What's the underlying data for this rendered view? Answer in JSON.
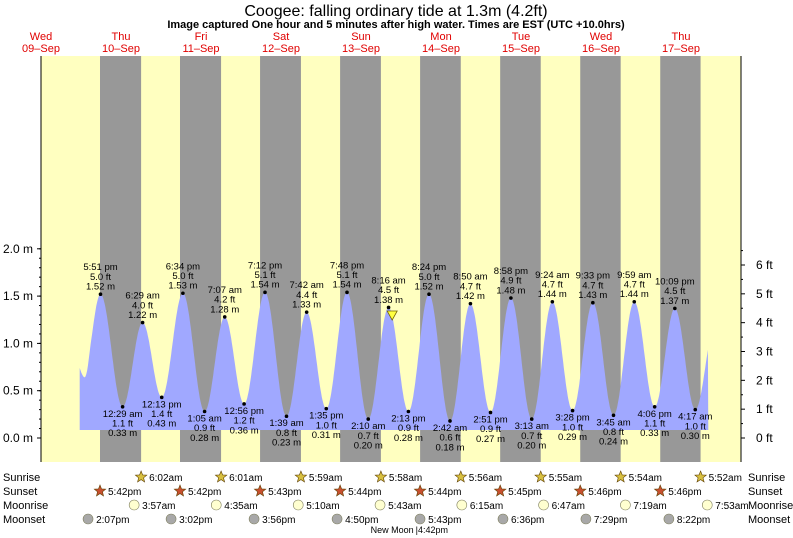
{
  "header": {
    "title": "Coogee: falling  ordinary tide at 1.3m (4.2ft)",
    "subtitle": "Image captured One hour and 5 minutes after high water. Times are EST (UTC +10.0hrs)"
  },
  "days": [
    {
      "dow": "Wed",
      "date": "09–Sep"
    },
    {
      "dow": "Thu",
      "date": "10–Sep"
    },
    {
      "dow": "Fri",
      "date": "11–Sep"
    },
    {
      "dow": "Sat",
      "date": "12–Sep"
    },
    {
      "dow": "Sun",
      "date": "13–Sep"
    },
    {
      "dow": "Mon",
      "date": "14–Sep"
    },
    {
      "dow": "Tue",
      "date": "15–Sep"
    },
    {
      "dow": "Wed",
      "date": "16–Sep"
    },
    {
      "dow": "Thu",
      "date": "17–Sep"
    }
  ],
  "chart_data": {
    "type": "area",
    "x_unit": "hours from Wed 09-Sep 00:00 (EST)",
    "ylim_m": [
      0.0,
      2.05
    ],
    "yticks_m": [
      "0.0 m",
      "0.5 m",
      "1.0 m",
      "1.5 m",
      "2.0 m"
    ],
    "yticks_ft": [
      "0 ft",
      "1 ft",
      "2 ft",
      "3 ft",
      "4 ft",
      "5 ft",
      "6 ft"
    ],
    "extremes": [
      {
        "t": 17.85,
        "time": "5:51 pm",
        "ft": "5.0 ft",
        "m": 1.52,
        "label": "1.52 m",
        "type": "high"
      },
      {
        "t": 24.48,
        "time": "12:29 am",
        "ft": "1.1 ft",
        "m": 0.33,
        "label": "0.33 m",
        "type": "low"
      },
      {
        "t": 30.48,
        "time": "6:29 am",
        "ft": "4.0 ft",
        "m": 1.22,
        "label": "1.22 m",
        "type": "high"
      },
      {
        "t": 36.22,
        "time": "12:13 pm",
        "ft": "1.4 ft",
        "m": 0.43,
        "label": "0.43 m",
        "type": "low"
      },
      {
        "t": 42.57,
        "time": "6:34 pm",
        "ft": "5.0 ft",
        "m": 1.53,
        "label": "1.53 m",
        "type": "high"
      },
      {
        "t": 49.08,
        "time": "1:05 am",
        "ft": "0.9 ft",
        "m": 0.28,
        "label": "0.28 m",
        "type": "low"
      },
      {
        "t": 55.12,
        "time": "7:07 am",
        "ft": "4.2 ft",
        "m": 1.28,
        "label": "1.28 m",
        "type": "high"
      },
      {
        "t": 60.93,
        "time": "12:56 pm",
        "ft": "1.2 ft",
        "m": 0.36,
        "label": "0.36 m",
        "type": "low"
      },
      {
        "t": 67.2,
        "time": "7:12 pm",
        "ft": "5.1 ft",
        "m": 1.54,
        "label": "1.54 m",
        "type": "high"
      },
      {
        "t": 73.65,
        "time": "1:39 am",
        "ft": "0.8 ft",
        "m": 0.23,
        "label": "0.23 m",
        "type": "low"
      },
      {
        "t": 79.7,
        "time": "7:42 am",
        "ft": "4.4 ft",
        "m": 1.33,
        "label": "1.33 m",
        "type": "high"
      },
      {
        "t": 85.58,
        "time": "1:35 pm",
        "ft": "1.0 ft",
        "m": 0.31,
        "label": "0.31 m",
        "type": "low"
      },
      {
        "t": 91.8,
        "time": "7:48 pm",
        "ft": "5.1 ft",
        "m": 1.54,
        "label": "1.54 m",
        "type": "high"
      },
      {
        "t": 98.17,
        "time": "2:10 am",
        "ft": "0.7 ft",
        "m": 0.2,
        "label": "0.20 m",
        "type": "low"
      },
      {
        "t": 104.27,
        "time": "8:16 am",
        "ft": "4.5 ft",
        "m": 1.38,
        "label": "1.38 m",
        "type": "high"
      },
      {
        "t": 110.22,
        "time": "2:13 pm",
        "ft": "0.9 ft",
        "m": 0.28,
        "label": "0.28 m",
        "type": "low"
      },
      {
        "t": 116.4,
        "time": "8:24 pm",
        "ft": "5.0 ft",
        "m": 1.52,
        "label": "1.52 m",
        "type": "high"
      },
      {
        "t": 122.7,
        "time": "2:42 am",
        "ft": "0.6 ft",
        "m": 0.18,
        "label": "0.18 m",
        "type": "low"
      },
      {
        "t": 128.83,
        "time": "8:50 am",
        "ft": "4.7 ft",
        "m": 1.42,
        "label": "1.42 m",
        "type": "high"
      },
      {
        "t": 134.85,
        "time": "2:51 pm",
        "ft": "0.9 ft",
        "m": 0.27,
        "label": "0.27 m",
        "type": "low"
      },
      {
        "t": 140.97,
        "time": "8:58 pm",
        "ft": "4.9 ft",
        "m": 1.48,
        "label": "1.48 m",
        "type": "high"
      },
      {
        "t": 147.22,
        "time": "3:13 am",
        "ft": "0.7 ft",
        "m": 0.2,
        "label": "0.20 m",
        "type": "low"
      },
      {
        "t": 153.4,
        "time": "9:24 am",
        "ft": "4.7 ft",
        "m": 1.44,
        "label": "1.44 m",
        "type": "high"
      },
      {
        "t": 159.47,
        "time": "3:28 pm",
        "ft": "1.0 ft",
        "m": 0.29,
        "label": "0.29 m",
        "type": "low"
      },
      {
        "t": 165.55,
        "time": "9:33 pm",
        "ft": "4.7 ft",
        "m": 1.43,
        "label": "1.43 m",
        "type": "high"
      },
      {
        "t": 171.75,
        "time": "3:45 am",
        "ft": "0.8 ft",
        "m": 0.24,
        "label": "0.24 m",
        "type": "low"
      },
      {
        "t": 177.98,
        "time": "9:59 am",
        "ft": "4.7 ft",
        "m": 1.44,
        "label": "1.44 m",
        "type": "high"
      },
      {
        "t": 184.1,
        "time": "4:06 pm",
        "ft": "1.1 ft",
        "m": 0.33,
        "label": "0.33 m",
        "type": "low"
      },
      {
        "t": 190.15,
        "time": "10:09 pm",
        "ft": "4.5 ft",
        "m": 1.37,
        "label": "1.37 m",
        "type": "high"
      },
      {
        "t": 196.28,
        "time": "4:17 am",
        "ft": "1.0 ft",
        "m": 0.3,
        "label": "0.30 m",
        "type": "low"
      }
    ],
    "current": {
      "t": 105.35,
      "m": 1.3
    }
  },
  "almanac": {
    "labels": {
      "sunrise": "Sunrise",
      "sunset": "Sunset",
      "moonrise": "Moonrise",
      "moonset": "Moonset"
    },
    "sunrise": [
      {
        "t": 30.03,
        "time": "6:02am"
      },
      {
        "t": 54.02,
        "time": "6:01am"
      },
      {
        "t": 77.98,
        "time": "5:59am"
      },
      {
        "t": 101.97,
        "time": "5:58am"
      },
      {
        "t": 125.93,
        "time": "5:56am"
      },
      {
        "t": 149.92,
        "time": "5:55am"
      },
      {
        "t": 173.9,
        "time": "5:54am"
      },
      {
        "t": 197.87,
        "time": "5:52am"
      }
    ],
    "sunset": [
      {
        "t": 17.7,
        "time": "5:42pm"
      },
      {
        "t": 41.7,
        "time": "5:42pm"
      },
      {
        "t": 65.72,
        "time": "5:43pm"
      },
      {
        "t": 89.73,
        "time": "5:44pm"
      },
      {
        "t": 113.73,
        "time": "5:44pm"
      },
      {
        "t": 137.75,
        "time": "5:45pm"
      },
      {
        "t": 161.77,
        "time": "5:46pm"
      },
      {
        "t": 185.77,
        "time": "5:46pm"
      }
    ],
    "moonrise": [
      {
        "t": 27.95,
        "time": "3:57am"
      },
      {
        "t": 52.58,
        "time": "4:35am"
      },
      {
        "t": 77.17,
        "time": "5:10am"
      },
      {
        "t": 101.72,
        "time": "5:43am"
      },
      {
        "t": 126.25,
        "time": "6:15am"
      },
      {
        "t": 150.78,
        "time": "6:47am"
      },
      {
        "t": 175.32,
        "time": "7:19am"
      },
      {
        "t": 199.88,
        "time": "7:53am"
      }
    ],
    "moonset": [
      {
        "t": 14.12,
        "time": "2:07pm"
      },
      {
        "t": 39.03,
        "time": "3:02pm"
      },
      {
        "t": 63.93,
        "time": "3:56pm"
      },
      {
        "t": 88.83,
        "time": "4:50pm"
      },
      {
        "t": 113.72,
        "time": "5:43pm"
      },
      {
        "t": 138.6,
        "time": "6:36pm"
      },
      {
        "t": 163.48,
        "time": "7:29pm"
      },
      {
        "t": 188.37,
        "time": "8:22pm"
      }
    ],
    "moon_phase": {
      "t": 112.7,
      "label": "New Moon",
      "time": "|4:42pm"
    }
  },
  "colors": {
    "day": "#ffffc0",
    "night": "#989898",
    "water": "#a0a8ff",
    "label": "#e00000",
    "sun_rise": "#d8c040",
    "sun_set": "#c85030",
    "moon_rise": "#ffffd0",
    "moon_set": "#a8a8a8",
    "marker": "#ffff40"
  }
}
